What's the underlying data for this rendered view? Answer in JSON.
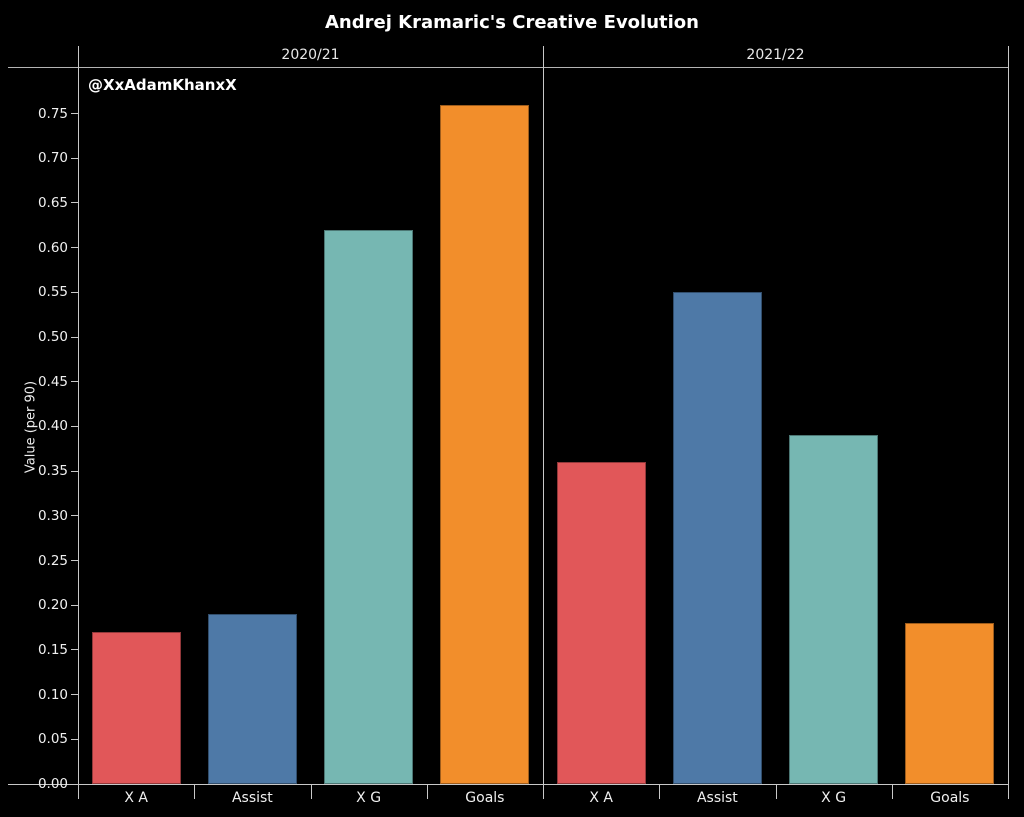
{
  "chart_data": {
    "type": "bar",
    "title": "Andrej Kramaric's Creative Evolution",
    "annotation": "@XxAdamKhanxX",
    "ylabel": "Value (per 90)",
    "xlabel": "",
    "categories": [
      "X A",
      "Assist",
      "X G",
      "Goals"
    ],
    "panels": [
      {
        "label": "2020/21",
        "values": [
          0.17,
          0.19,
          0.62,
          0.76
        ]
      },
      {
        "label": "2021/22",
        "values": [
          0.36,
          0.55,
          0.39,
          0.18
        ]
      }
    ],
    "bar_colors": [
      "#E15759",
      "#4E79A7",
      "#76B7B2",
      "#F28E2B"
    ],
    "ylim": [
      0,
      0.8
    ],
    "yticks": [
      0.0,
      0.05,
      0.1,
      0.15,
      0.2,
      0.25,
      0.3,
      0.35,
      0.4,
      0.45,
      0.5,
      0.55,
      0.6,
      0.65,
      0.7,
      0.75
    ],
    "grid": false,
    "legend": "none",
    "background_color": "#000000",
    "text_color": "#ffffff",
    "axis_color": "#c8c8c8"
  }
}
